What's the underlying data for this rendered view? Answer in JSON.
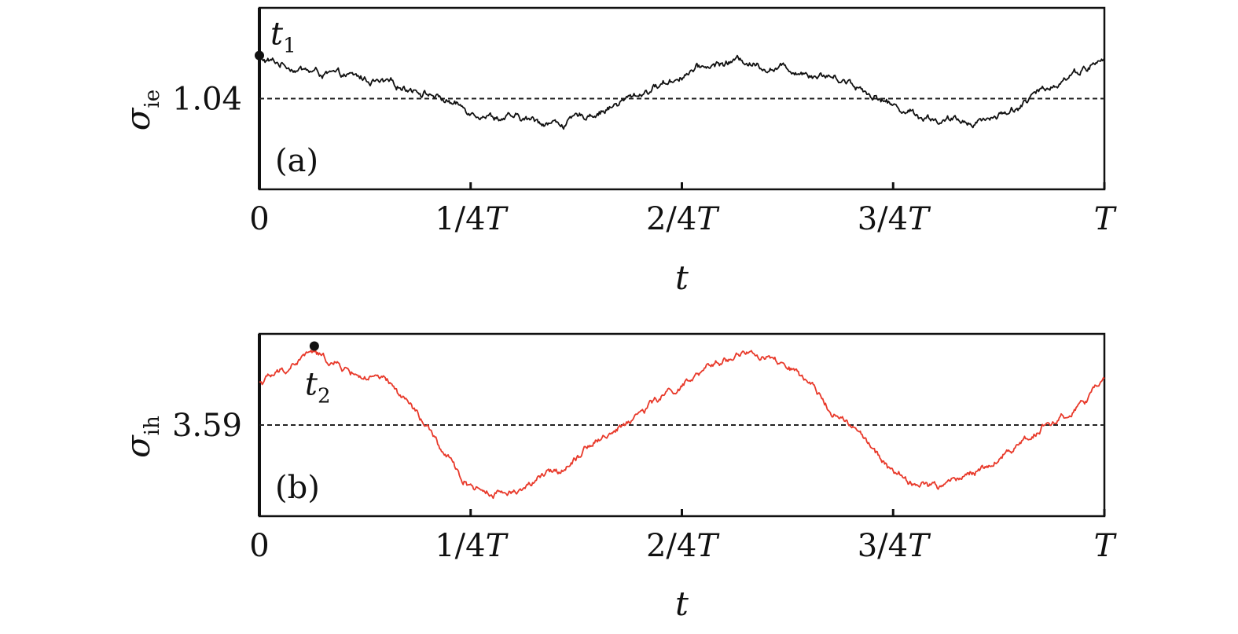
{
  "chart_data": [
    {
      "type": "line",
      "panel_label": "(a)",
      "xlabel": "t",
      "ylabel": "σie",
      "ylabel_main": "σ",
      "ylabel_sub": "ie",
      "x_tick_labels": [
        "0",
        "1/4T",
        "2/4T",
        "3/4T",
        "T"
      ],
      "x_ticks": [
        0,
        0.25,
        0.5,
        0.75,
        1
      ],
      "xlim": [
        0,
        1
      ],
      "y_tick_label": "1.04",
      "reference_value": 1.04,
      "ylim": [
        1.0,
        1.08
      ],
      "grid": false,
      "line_color": "#111111",
      "series": [
        {
          "x": [
            0,
            0.03,
            0.06,
            0.09,
            0.12,
            0.15,
            0.18,
            0.21,
            0.24,
            0.27,
            0.3,
            0.33,
            0.36,
            0.39,
            0.42,
            0.45,
            0.48,
            0.51,
            0.54,
            0.57,
            0.6,
            0.63,
            0.66,
            0.69,
            0.72,
            0.75,
            0.78,
            0.81,
            0.84,
            0.87,
            0.9,
            0.93,
            0.96,
            1.0
          ],
          "values": [
            1.057,
            1.055,
            1.052,
            1.05,
            1.049,
            1.046,
            1.045,
            1.041,
            1.036,
            1.033,
            1.031,
            1.03,
            1.029,
            1.033,
            1.037,
            1.042,
            1.047,
            1.052,
            1.055,
            1.057,
            1.054,
            1.053,
            1.051,
            1.049,
            1.043,
            1.037,
            1.033,
            1.03,
            1.03,
            1.032,
            1.037,
            1.044,
            1.051,
            1.057
          ]
        }
      ],
      "markers": [
        {
          "name": "t1",
          "label_main": "t",
          "label_sub": "1",
          "x": 0.0,
          "y": 1.059
        }
      ]
    },
    {
      "type": "line",
      "panel_label": "(b)",
      "xlabel": "t",
      "ylabel": "σih",
      "ylabel_main": "σ",
      "ylabel_sub": "ih",
      "x_tick_labels": [
        "0",
        "1/4T",
        "2/4T",
        "3/4T",
        "T"
      ],
      "x_ticks": [
        0,
        0.25,
        0.5,
        0.75,
        1
      ],
      "xlim": [
        0,
        1
      ],
      "y_tick_label": "3.59",
      "reference_value": 3.59,
      "ylim": [
        3.44,
        3.74
      ],
      "grid": false,
      "line_color": "#e8392a",
      "series": [
        {
          "x": [
            0,
            0.03,
            0.06,
            0.09,
            0.12,
            0.15,
            0.18,
            0.21,
            0.24,
            0.27,
            0.3,
            0.33,
            0.36,
            0.39,
            0.42,
            0.45,
            0.48,
            0.51,
            0.54,
            0.57,
            0.6,
            0.63,
            0.66,
            0.69,
            0.72,
            0.75,
            0.78,
            0.81,
            0.84,
            0.87,
            0.9,
            0.93,
            0.96,
            1.0
          ],
          "values": [
            3.66,
            3.68,
            3.71,
            3.69,
            3.67,
            3.66,
            3.62,
            3.56,
            3.5,
            3.48,
            3.48,
            3.5,
            3.52,
            3.56,
            3.58,
            3.61,
            3.64,
            3.66,
            3.69,
            3.71,
            3.7,
            3.68,
            3.64,
            3.6,
            3.56,
            3.51,
            3.49,
            3.49,
            3.51,
            3.53,
            3.56,
            3.59,
            3.61,
            3.66
          ]
        }
      ],
      "markers": [
        {
          "name": "t2",
          "label_main": "t",
          "label_sub": "2",
          "x": 0.065,
          "y": 3.72
        }
      ]
    }
  ]
}
